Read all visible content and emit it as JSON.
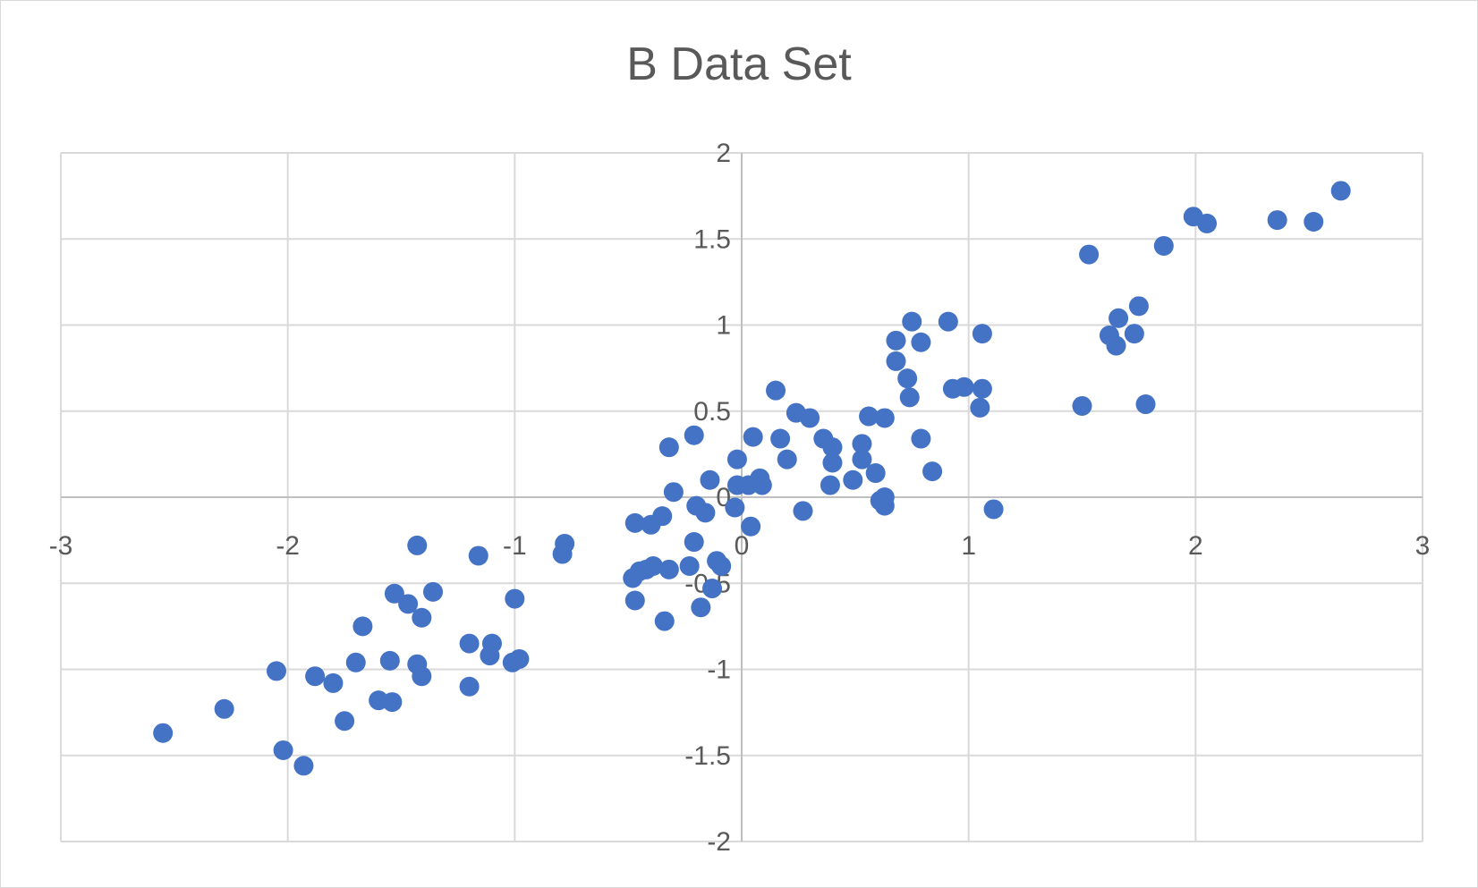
{
  "chart_data": {
    "type": "scatter",
    "title": "B Data Set",
    "xlabel": "",
    "ylabel": "",
    "xlim": [
      -3,
      3
    ],
    "ylim": [
      -2,
      2
    ],
    "x_ticks": [
      "-3",
      "-2",
      "-1",
      "0",
      "1",
      "2",
      "3"
    ],
    "y_ticks": [
      "-2",
      "-1.5",
      "-1",
      "-0.5",
      "0",
      "0.5",
      "1",
      "1.5",
      "2"
    ],
    "grid": true,
    "legend": "none",
    "marker_color": "#4472c4",
    "series": [
      {
        "points": [
          [
            -2.55,
            -1.37
          ],
          [
            -2.28,
            -1.23
          ],
          [
            -2.05,
            -1.01
          ],
          [
            -2.02,
            -1.47
          ],
          [
            -1.93,
            -1.56
          ],
          [
            -1.88,
            -1.04
          ],
          [
            -1.8,
            -1.08
          ],
          [
            -1.75,
            -1.3
          ],
          [
            -1.7,
            -0.96
          ],
          [
            -1.67,
            -0.75
          ],
          [
            -1.6,
            -1.18
          ],
          [
            -1.55,
            -0.95
          ],
          [
            -1.54,
            -1.19
          ],
          [
            -1.53,
            -0.56
          ],
          [
            -1.47,
            -0.62
          ],
          [
            -1.43,
            -0.28
          ],
          [
            -1.43,
            -0.97
          ],
          [
            -1.41,
            -0.7
          ],
          [
            -1.41,
            -1.04
          ],
          [
            -1.36,
            -0.55
          ],
          [
            -1.2,
            -0.85
          ],
          [
            -1.2,
            -1.1
          ],
          [
            -1.16,
            -0.34
          ],
          [
            -1.1,
            -0.85
          ],
          [
            -1.11,
            -0.92
          ],
          [
            -1.0,
            -0.59
          ],
          [
            -1.01,
            -0.96
          ],
          [
            -0.98,
            -0.94
          ],
          [
            -0.78,
            -0.27
          ],
          [
            -0.79,
            -0.33
          ],
          [
            -0.48,
            -0.47
          ],
          [
            -0.47,
            -0.15
          ],
          [
            -0.47,
            -0.6
          ],
          [
            -0.45,
            -0.43
          ],
          [
            -0.42,
            -0.42
          ],
          [
            -0.4,
            -0.16
          ],
          [
            -0.39,
            -0.4
          ],
          [
            -0.35,
            -0.11
          ],
          [
            -0.34,
            -0.72
          ],
          [
            -0.32,
            -0.42
          ],
          [
            -0.32,
            0.29
          ],
          [
            -0.3,
            0.03
          ],
          [
            -0.23,
            -0.4
          ],
          [
            -0.21,
            0.36
          ],
          [
            -0.21,
            -0.26
          ],
          [
            -0.2,
            -0.05
          ],
          [
            -0.18,
            -0.64
          ],
          [
            -0.16,
            -0.09
          ],
          [
            -0.14,
            0.1
          ],
          [
            -0.13,
            -0.53
          ],
          [
            -0.11,
            -0.37
          ],
          [
            -0.09,
            -0.4
          ],
          [
            -0.03,
            -0.06
          ],
          [
            -0.02,
            0.22
          ],
          [
            -0.02,
            0.07
          ],
          [
            0.04,
            -0.17
          ],
          [
            0.03,
            0.07
          ],
          [
            0.05,
            0.35
          ],
          [
            0.08,
            0.11
          ],
          [
            0.09,
            0.07
          ],
          [
            0.15,
            0.62
          ],
          [
            0.17,
            0.34
          ],
          [
            0.2,
            0.22
          ],
          [
            0.24,
            0.49
          ],
          [
            0.27,
            -0.08
          ],
          [
            0.3,
            0.46
          ],
          [
            0.36,
            0.34
          ],
          [
            0.4,
            0.29
          ],
          [
            0.4,
            0.2
          ],
          [
            0.39,
            0.07
          ],
          [
            0.49,
            0.1
          ],
          [
            0.53,
            0.31
          ],
          [
            0.53,
            0.22
          ],
          [
            0.56,
            0.47
          ],
          [
            0.59,
            0.14
          ],
          [
            0.61,
            -0.02
          ],
          [
            0.63,
            0.0
          ],
          [
            0.63,
            -0.05
          ],
          [
            0.63,
            0.46
          ],
          [
            0.68,
            0.91
          ],
          [
            0.68,
            0.79
          ],
          [
            0.73,
            0.69
          ],
          [
            0.74,
            0.58
          ],
          [
            0.75,
            1.02
          ],
          [
            0.79,
            0.9
          ],
          [
            0.79,
            0.34
          ],
          [
            0.84,
            0.15
          ],
          [
            0.91,
            1.02
          ],
          [
            0.93,
            0.63
          ],
          [
            0.98,
            0.64
          ],
          [
            1.06,
            0.95
          ],
          [
            1.06,
            0.63
          ],
          [
            1.05,
            0.52
          ],
          [
            1.11,
            -0.07
          ],
          [
            1.5,
            0.53
          ],
          [
            1.53,
            1.41
          ],
          [
            1.62,
            0.94
          ],
          [
            1.65,
            0.88
          ],
          [
            1.66,
            1.04
          ],
          [
            1.73,
            0.95
          ],
          [
            1.75,
            1.11
          ],
          [
            1.78,
            0.54
          ],
          [
            1.86,
            1.46
          ],
          [
            1.99,
            1.63
          ],
          [
            2.05,
            1.59
          ],
          [
            2.36,
            1.61
          ],
          [
            2.52,
            1.6
          ],
          [
            2.64,
            1.78
          ]
        ]
      }
    ]
  }
}
